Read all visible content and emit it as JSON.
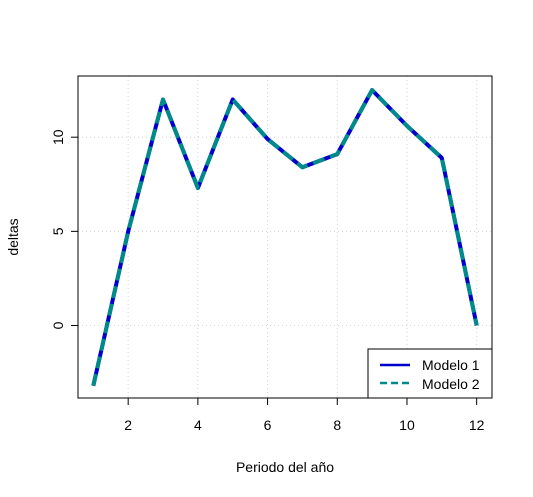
{
  "chart_data": {
    "type": "line",
    "title": "",
    "xlabel": "Periodo del año",
    "ylabel": "deltas",
    "x": [
      1,
      2,
      3,
      4,
      5,
      6,
      7,
      8,
      9,
      10,
      11,
      12
    ],
    "xlim": [
      0.56,
      12.44
    ],
    "ylim": [
      -3.85,
      13.25
    ],
    "xticks": [
      2,
      4,
      6,
      8,
      10,
      12
    ],
    "yticks": [
      0,
      5,
      10
    ],
    "grid": true,
    "legend_position": "bottom-right",
    "series": [
      {
        "name": "Modelo 1",
        "color": "#0000CD",
        "style": "solid",
        "values": [
          -3.2,
          5.0,
          12.0,
          7.3,
          12.0,
          9.9,
          8.4,
          9.1,
          12.5,
          10.6,
          8.9,
          0.0
        ]
      },
      {
        "name": "Modelo 2",
        "color": "#008B8B",
        "style": "dashed",
        "values": [
          -3.2,
          5.0,
          12.0,
          7.3,
          12.0,
          9.9,
          8.4,
          9.1,
          12.5,
          10.6,
          8.9,
          0.0
        ]
      }
    ]
  }
}
